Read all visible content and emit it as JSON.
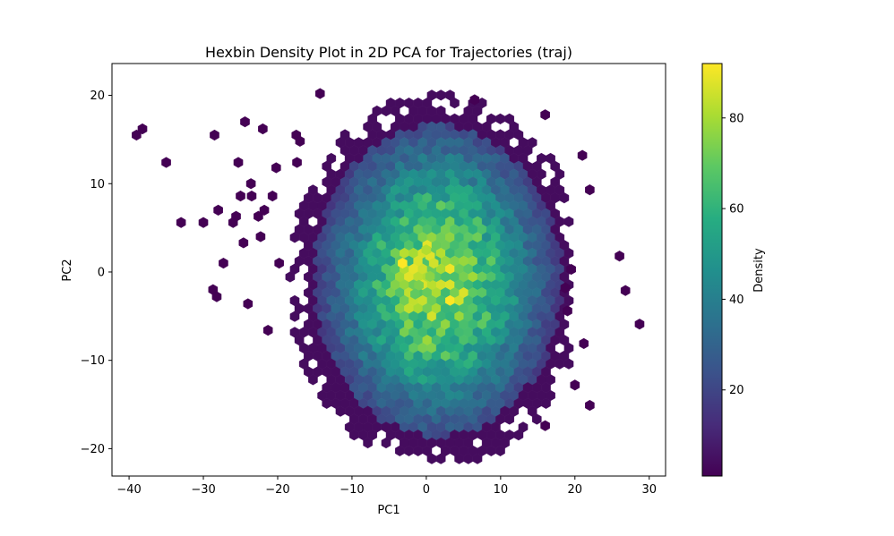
{
  "chart_data": {
    "type": "heatmap",
    "subtype": "hexbin",
    "title": "Hexbin Density Plot in 2D PCA for Trajectories (traj)",
    "xlabel": "PC1",
    "ylabel": "PC2",
    "colorbar_label": "Density",
    "colormap": "viridis",
    "xlim": [
      -42.3,
      32.2
    ],
    "ylim": [
      -23.1,
      23.6
    ],
    "x_ticks": [
      -40,
      -30,
      -20,
      -10,
      0,
      10,
      20,
      30
    ],
    "y_ticks": [
      -20,
      -10,
      0,
      10,
      20
    ],
    "x_tick_labels": [
      "−40",
      "−30",
      "−20",
      "−10",
      "0",
      "10",
      "20",
      "30"
    ],
    "y_tick_labels": [
      "−20",
      "−10",
      "0",
      "10",
      "20"
    ],
    "colorbar_range": [
      1,
      92
    ],
    "colorbar_ticks": [
      20,
      40,
      60,
      80
    ],
    "colorbar_tick_labels": [
      "20",
      "40",
      "60",
      "80"
    ],
    "grid": false,
    "density_model": {
      "center": [
        1.5,
        -1.0
      ],
      "sigma": [
        9.5,
        11.0
      ],
      "peak": 80,
      "core_bounds": {
        "x": [
          -19.5,
          19.5
        ],
        "y": [
          -21.5,
          21.5
        ]
      }
    },
    "hotspots": [
      {
        "x": -3.2,
        "y": 1.0,
        "density": 92
      },
      {
        "x": 0.5,
        "y": 1.8,
        "density": 88
      },
      {
        "x": 1.0,
        "y": 1.0,
        "density": 86
      },
      {
        "x": 0.0,
        "y": 2.5,
        "density": 82
      },
      {
        "x": -1.0,
        "y": -1.5,
        "density": 74
      },
      {
        "x": -1.5,
        "y": -2.5,
        "density": 70
      },
      {
        "x": 0.5,
        "y": -0.5,
        "density": 76
      }
    ],
    "outliers": [
      {
        "x": -39.0,
        "y": 15.5
      },
      {
        "x": -38.2,
        "y": 16.2
      },
      {
        "x": -35.0,
        "y": 12.4
      },
      {
        "x": -33.0,
        "y": 5.6
      },
      {
        "x": -30.0,
        "y": 5.6
      },
      {
        "x": -28.5,
        "y": 15.5
      },
      {
        "x": -28.7,
        "y": -2.0
      },
      {
        "x": -28.2,
        "y": -2.8
      },
      {
        "x": -28.0,
        "y": 7.0
      },
      {
        "x": -27.3,
        "y": 1.0
      },
      {
        "x": -26.0,
        "y": 5.6
      },
      {
        "x": -25.3,
        "y": 12.4
      },
      {
        "x": -25.6,
        "y": 6.3
      },
      {
        "x": -25.0,
        "y": 8.6
      },
      {
        "x": -24.6,
        "y": 3.3
      },
      {
        "x": -24.4,
        "y": 17.0
      },
      {
        "x": -24.0,
        "y": -3.6
      },
      {
        "x": -23.6,
        "y": 10.0
      },
      {
        "x": -23.5,
        "y": 8.6
      },
      {
        "x": -22.6,
        "y": 6.3
      },
      {
        "x": -22.3,
        "y": 4.0
      },
      {
        "x": -22.0,
        "y": 16.2
      },
      {
        "x": -21.8,
        "y": 7.0
      },
      {
        "x": -21.3,
        "y": -6.6
      },
      {
        "x": -20.7,
        "y": 8.6
      },
      {
        "x": -20.2,
        "y": 11.8
      },
      {
        "x": -19.8,
        "y": 1.0
      },
      {
        "x": -17.5,
        "y": 15.5
      },
      {
        "x": -17.0,
        "y": 14.8
      },
      {
        "x": -17.4,
        "y": 12.4
      },
      {
        "x": -14.3,
        "y": 20.2
      },
      {
        "x": 6.5,
        "y": 19.5
      },
      {
        "x": 16.0,
        "y": 17.8
      },
      {
        "x": 21.0,
        "y": 13.2
      },
      {
        "x": 22.0,
        "y": 9.3
      },
      {
        "x": 19.5,
        "y": 0.3
      },
      {
        "x": 18.7,
        "y": -1.8
      },
      {
        "x": 19.0,
        "y": -4.4
      },
      {
        "x": 21.2,
        "y": -8.1
      },
      {
        "x": 20.0,
        "y": -12.8
      },
      {
        "x": 22.0,
        "y": -15.1
      },
      {
        "x": 26.0,
        "y": 1.8
      },
      {
        "x": 26.8,
        "y": -2.1
      },
      {
        "x": 28.7,
        "y": -5.9
      },
      {
        "x": 16.0,
        "y": -17.4
      }
    ],
    "gaps": [
      {
        "x": -10.0,
        "y": 17.8
      },
      {
        "x": -8.0,
        "y": 20.2
      },
      {
        "x": -6.5,
        "y": 19.4
      }
    ]
  }
}
